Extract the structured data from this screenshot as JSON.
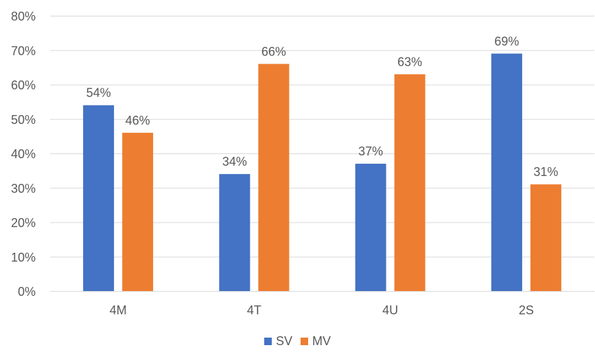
{
  "chart_data": {
    "type": "bar",
    "categories": [
      "4M",
      "4T",
      "4U",
      "2S"
    ],
    "series": [
      {
        "name": "SV",
        "color": "#4472C4",
        "values": [
          54,
          34,
          37,
          69
        ],
        "labels": [
          "54%",
          "34%",
          "37%",
          "69%"
        ]
      },
      {
        "name": "MV",
        "color": "#ED7D31",
        "values": [
          46,
          66,
          63,
          31
        ],
        "labels": [
          "46%",
          "66%",
          "63%",
          "31%"
        ]
      }
    ],
    "ylim": [
      0,
      80
    ],
    "yticks": [
      0,
      10,
      20,
      30,
      40,
      50,
      60,
      70,
      80
    ],
    "ytick_labels": [
      "0%",
      "10%",
      "20%",
      "30%",
      "40%",
      "50%",
      "60%",
      "70%",
      "80%"
    ],
    "grid": true,
    "legend_position": "bottom",
    "gridline_color": "#D9D9D9",
    "text_color": "#595959"
  }
}
